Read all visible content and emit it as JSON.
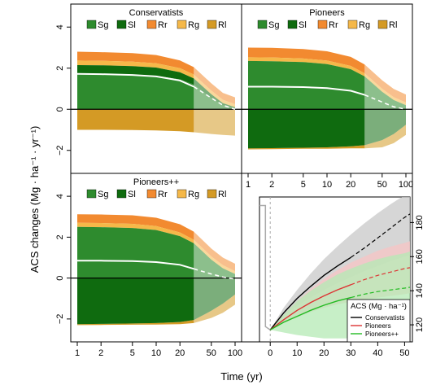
{
  "figure": {
    "y_axis_label": "ACS changes (Mg · ha⁻¹ · yr⁻¹)",
    "x_axis_label": "Time (yr)",
    "legend_labels": [
      "Sg",
      "Sl",
      "Rr",
      "Rg",
      "Rl"
    ],
    "colors": {
      "Sg": "#2e8b2e",
      "Sl": "#0f6b0f",
      "Rr": "#f28a30",
      "Rg": "#f5b849",
      "Rl": "#d49a25",
      "net_line": "#ffffff"
    }
  },
  "chart_data": [
    {
      "type": "area",
      "title": "Conservatists",
      "x_scale": "log",
      "xlim": [
        1,
        100
      ],
      "ylim": [
        -3,
        5
      ],
      "x_ticks": [
        1,
        2,
        5,
        10,
        20,
        50,
        100
      ],
      "y_ticks": [
        -2,
        0,
        2,
        4
      ],
      "observed_until": 30,
      "x": [
        1,
        2,
        5,
        10,
        20,
        30,
        50,
        70,
        100
      ],
      "series": [
        {
          "name": "Sg",
          "values": [
            1.7,
            1.7,
            1.68,
            1.63,
            1.45,
            1.2,
            0.55,
            0.2,
            0.05
          ]
        },
        {
          "name": "Sl",
          "values": [
            0.45,
            0.44,
            0.42,
            0.4,
            0.35,
            0.3,
            0.18,
            0.1,
            0.05
          ]
        },
        {
          "name": "Rg",
          "values": [
            0.22,
            0.22,
            0.22,
            0.21,
            0.2,
            0.19,
            0.18,
            0.16,
            0.15
          ]
        },
        {
          "name": "Rr",
          "values": [
            0.43,
            0.42,
            0.41,
            0.4,
            0.38,
            0.36,
            0.35,
            0.34,
            0.33
          ]
        },
        {
          "name": "Rl",
          "values": [
            -1.0,
            -1.0,
            -1.01,
            -1.03,
            -1.07,
            -1.12,
            -1.2,
            -1.25,
            -1.28
          ]
        }
      ],
      "net": [
        1.72,
        1.71,
        1.67,
        1.6,
        1.4,
        1.1,
        0.55,
        0.2,
        0.0
      ]
    },
    {
      "type": "area",
      "title": "Pioneers",
      "x_scale": "log",
      "xlim": [
        1,
        100
      ],
      "ylim": [
        -3,
        5
      ],
      "x_ticks": [
        1,
        2,
        5,
        10,
        20,
        50,
        100
      ],
      "y_ticks": [
        -2,
        0,
        2,
        4
      ],
      "observed_until": 30,
      "x": [
        1,
        2,
        5,
        10,
        20,
        30,
        50,
        70,
        100
      ],
      "series": [
        {
          "name": "Sg",
          "values": [
            2.35,
            2.34,
            2.3,
            2.2,
            1.95,
            1.6,
            0.85,
            0.45,
            0.2
          ]
        },
        {
          "name": "Sl",
          "values": [
            -1.9,
            -1.89,
            -1.87,
            -1.85,
            -1.8,
            -1.75,
            -1.5,
            -1.2,
            -0.75
          ]
        },
        {
          "name": "Rg",
          "values": [
            0.18,
            0.18,
            0.17,
            0.17,
            0.16,
            0.15,
            0.15,
            0.14,
            0.13
          ]
        },
        {
          "name": "Rr",
          "values": [
            0.47,
            0.47,
            0.46,
            0.45,
            0.44,
            0.43,
            0.41,
            0.4,
            0.39
          ]
        },
        {
          "name": "Rl",
          "values": [
            -0.05,
            -0.05,
            -0.05,
            -0.07,
            -0.1,
            -0.15,
            -0.35,
            -0.45,
            -0.5
          ]
        }
      ],
      "net": [
        1.1,
        1.1,
        1.08,
        1.03,
        0.9,
        0.7,
        0.35,
        0.12,
        0.0
      ]
    },
    {
      "type": "area",
      "title": "Pioneers++",
      "x_scale": "log",
      "xlim": [
        1,
        100
      ],
      "ylim": [
        -3,
        5
      ],
      "x_ticks": [
        1,
        2,
        5,
        10,
        20,
        50,
        100
      ],
      "y_ticks": [
        -2,
        0,
        2,
        4
      ],
      "observed_until": 30,
      "x": [
        1,
        2,
        5,
        10,
        20,
        30,
        50,
        70,
        100
      ],
      "series": [
        {
          "name": "Sg",
          "values": [
            2.5,
            2.49,
            2.45,
            2.35,
            2.05,
            1.7,
            0.9,
            0.48,
            0.2
          ]
        },
        {
          "name": "Sl",
          "values": [
            -2.25,
            -2.24,
            -2.22,
            -2.2,
            -2.15,
            -2.05,
            -1.6,
            -1.25,
            -0.8
          ]
        },
        {
          "name": "Rg",
          "values": [
            0.2,
            0.2,
            0.2,
            0.19,
            0.18,
            0.17,
            0.16,
            0.15,
            0.14
          ]
        },
        {
          "name": "Rr",
          "values": [
            0.42,
            0.42,
            0.42,
            0.41,
            0.4,
            0.4,
            0.38,
            0.37,
            0.36
          ]
        },
        {
          "name": "Rl",
          "values": [
            -0.05,
            -0.05,
            -0.06,
            -0.07,
            -0.1,
            -0.15,
            -0.35,
            -0.45,
            -0.5
          ]
        }
      ],
      "net": [
        0.85,
        0.85,
        0.83,
        0.78,
        0.65,
        0.45,
        0.2,
        0.05,
        -0.05
      ]
    },
    {
      "type": "line",
      "legend_title": "ACS (Mg · ha⁻¹)",
      "legend_position": "bottom-right",
      "xlim": [
        -4,
        52
      ],
      "ylim": [
        110,
        195
      ],
      "x_ticks": [
        0,
        10,
        20,
        30,
        40,
        50
      ],
      "y_ticks": [
        120,
        140,
        160,
        180
      ],
      "top_x_ticks": [
        1,
        2,
        5,
        10,
        20,
        50,
        100
      ],
      "observed_until": 30,
      "pre_plantation": {
        "x": [
          -4,
          -1.8,
          -1.8,
          0
        ],
        "y": [
          190,
          190,
          119,
          117
        ]
      },
      "x": [
        0,
        5,
        10,
        15,
        20,
        25,
        30,
        35,
        40,
        45,
        50,
        52
      ],
      "series": [
        {
          "name": "Conservatists",
          "color": "#000000",
          "band_color": "#c8c8c8",
          "values": [
            117,
            127,
            135.5,
            142.5,
            149,
            154.5,
            159.5,
            165,
            171,
            177,
            183,
            185
          ],
          "lower": [
            117,
            125,
            131,
            136,
            140.5,
            144.5,
            148,
            151.5,
            154.5,
            157.5,
            160,
            161
          ],
          "upper": [
            117,
            130,
            140.5,
            150,
            158.5,
            166,
            173,
            179.5,
            185.5,
            191,
            196,
            198
          ]
        },
        {
          "name": "Pioneers",
          "color": "#dd3333",
          "band_color": "#f7c4c4",
          "values": [
            117,
            123,
            128.5,
            133,
            137,
            140.5,
            143.5,
            146.5,
            149,
            151,
            153,
            153.5
          ],
          "lower": [
            117,
            121,
            124.5,
            127.5,
            130,
            132,
            133.5,
            135,
            136,
            137,
            138,
            138.5
          ],
          "upper": [
            117,
            126,
            134,
            141,
            147,
            152,
            156.5,
            160,
            163.5,
            166,
            168,
            169
          ]
        },
        {
          "name": "Pioneers++",
          "color": "#22bb22",
          "band_color": "#b4eab4",
          "values": [
            117,
            121.5,
            125,
            128.5,
            131.5,
            134,
            136,
            138,
            139.5,
            140.5,
            141.5,
            142
          ],
          "lower": [
            117,
            115.5,
            114,
            113,
            112,
            112,
            112,
            112,
            112,
            112,
            112,
            112
          ],
          "upper": [
            117,
            126,
            134,
            140,
            145,
            149.5,
            153,
            156,
            158.5,
            160.5,
            162,
            163
          ]
        }
      ]
    }
  ]
}
